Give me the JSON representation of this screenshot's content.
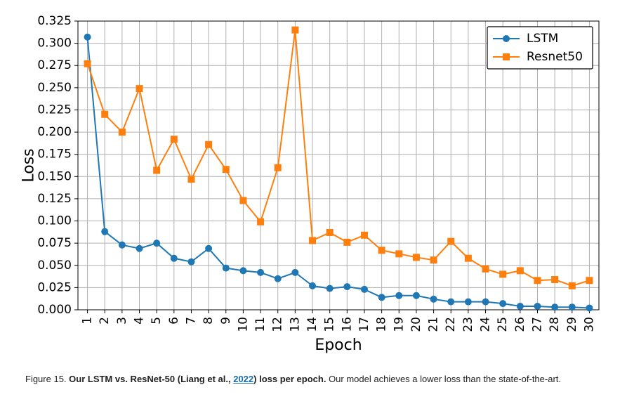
{
  "chart_data": {
    "type": "line",
    "title": "",
    "xlabel": "Epoch",
    "ylabel": "Loss",
    "x": [
      1,
      2,
      3,
      4,
      5,
      6,
      7,
      8,
      9,
      10,
      11,
      12,
      13,
      14,
      15,
      16,
      17,
      18,
      19,
      20,
      21,
      22,
      23,
      24,
      25,
      26,
      27,
      28,
      29,
      30
    ],
    "xlim": [
      0.45,
      30.55
    ],
    "ylim": [
      0,
      0.325
    ],
    "yticks": [
      0.0,
      0.025,
      0.05,
      0.075,
      0.1,
      0.125,
      0.15,
      0.175,
      0.2,
      0.225,
      0.25,
      0.275,
      0.3,
      0.325
    ],
    "ytick_labels": [
      "0.000",
      "0.025",
      "0.050",
      "0.075",
      "0.100",
      "0.125",
      "0.150",
      "0.175",
      "0.200",
      "0.225",
      "0.250",
      "0.275",
      "0.300",
      "0.325"
    ],
    "grid": true,
    "legend_position": "top-right",
    "series": [
      {
        "name": "LSTM",
        "color": "#1f77b4",
        "marker": "circle",
        "values": [
          0.307,
          0.088,
          0.073,
          0.069,
          0.075,
          0.058,
          0.054,
          0.069,
          0.047,
          0.044,
          0.042,
          0.035,
          0.042,
          0.027,
          0.024,
          0.026,
          0.023,
          0.014,
          0.016,
          0.016,
          0.012,
          0.009,
          0.009,
          0.009,
          0.007,
          0.004,
          0.004,
          0.003,
          0.003,
          0.002
        ]
      },
      {
        "name": "Resnet50",
        "color": "#ff7f0e",
        "marker": "square",
        "values": [
          0.277,
          0.22,
          0.2,
          0.249,
          0.157,
          0.192,
          0.147,
          0.186,
          0.158,
          0.123,
          0.099,
          0.16,
          0.315,
          0.078,
          0.087,
          0.076,
          0.084,
          0.067,
          0.063,
          0.059,
          0.056,
          0.077,
          0.058,
          0.046,
          0.04,
          0.044,
          0.033,
          0.034,
          0.027,
          0.033
        ]
      }
    ]
  },
  "caption": {
    "prefix": "Figure 15. ",
    "bold_start": "Our LSTM vs. ResNet-50 (Liang et al., ",
    "link": "2022",
    "bold_end": ") loss per epoch.",
    "rest": " Our model achieves a lower loss than the state-of-the-art."
  }
}
